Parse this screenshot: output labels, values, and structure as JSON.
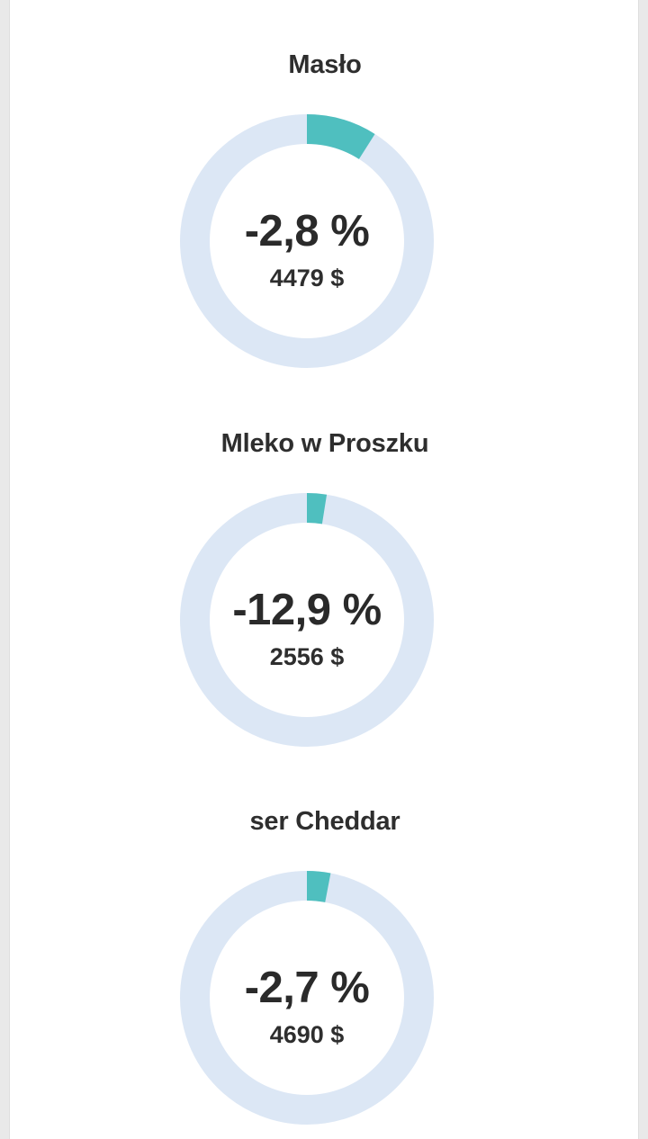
{
  "chart_data": [
    {
      "type": "pie",
      "title": "Masło",
      "center_label": "-2,8 %",
      "center_value": "4479 $",
      "fraction": 0.09,
      "colors": {
        "track": "#dce7f5",
        "fill": "#4fbfbf"
      }
    },
    {
      "type": "pie",
      "title": "Mleko w Proszku",
      "center_label": "-12,9 %",
      "center_value": "2556 $",
      "fraction": 0.025,
      "colors": {
        "track": "#dce7f5",
        "fill": "#4fbfbf"
      }
    },
    {
      "type": "pie",
      "title": "ser Cheddar",
      "center_label": "-2,7 %",
      "center_value": "4690 $",
      "fraction": 0.03,
      "colors": {
        "track": "#dce7f5",
        "fill": "#4fbfbf"
      }
    }
  ]
}
